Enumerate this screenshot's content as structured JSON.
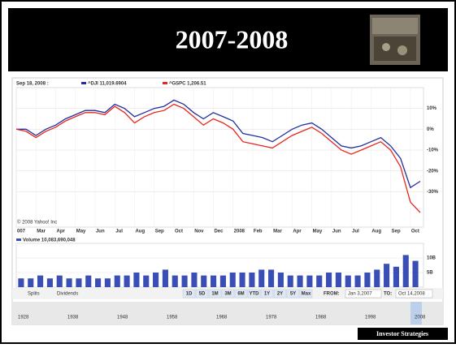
{
  "slide": {
    "title": "2007-2008",
    "footer": "Investor Strategies"
  },
  "chart_data": [
    {
      "type": "line",
      "legend_date": "Sep 18, 2008 :",
      "copyright": "© 2008 Yahoo! Inc",
      "categories": [
        "007",
        null,
        "Mar",
        null,
        "Apr",
        null,
        "May",
        null,
        "Jun",
        null,
        "Jul",
        null,
        "Aug",
        null,
        "Sep",
        null,
        "Oct",
        null,
        "Nov",
        null,
        "Dec",
        null,
        "2008",
        null,
        "Feb",
        null,
        "Mar",
        null,
        "Apr",
        null,
        "May",
        null,
        "Jun",
        null,
        "Jul",
        null,
        "Aug",
        null,
        "Sep",
        null,
        "Oct",
        null
      ],
      "series": [
        {
          "name": "^DJI 11,019.6904",
          "color": "#1f2f9e",
          "values": [
            0,
            0,
            -3,
            0,
            2,
            5,
            7,
            9,
            9,
            8,
            12,
            10,
            6,
            8,
            10,
            11,
            14,
            12,
            8,
            5,
            8,
            6,
            4,
            -2,
            -3,
            -4,
            -6,
            -3,
            0,
            2,
            3,
            0,
            -4,
            -8,
            -9,
            -8,
            -6,
            -4,
            -8,
            -14,
            -28,
            -25
          ]
        },
        {
          "name": "^GSPC 1,206.51",
          "color": "#e8261c",
          "values": [
            0,
            -1,
            -4,
            -1,
            1,
            4,
            6,
            8,
            8,
            7,
            11,
            8,
            3,
            6,
            8,
            9,
            12,
            10,
            6,
            2,
            5,
            3,
            0,
            -6,
            -7,
            -8,
            -9,
            -6,
            -3,
            -1,
            1,
            -2,
            -6,
            -10,
            -12,
            -10,
            -8,
            -6,
            -10,
            -18,
            -35,
            -40
          ]
        }
      ],
      "ylim": [
        -47,
        20
      ],
      "yticks": [
        {
          "value": 10,
          "label": "10%"
        },
        {
          "value": 0,
          "label": "0%"
        },
        {
          "value": -10,
          "label": "-10%"
        },
        {
          "value": -20,
          "label": "-20%"
        },
        {
          "value": -30,
          "label": "-30%"
        }
      ],
      "grid": true
    },
    {
      "type": "bar",
      "series": [
        {
          "name": "Volume 10,083,690,048",
          "color": "#3a4fb5",
          "values": [
            3,
            3,
            4,
            3,
            4,
            3,
            3,
            4,
            3,
            3,
            4,
            4,
            5,
            4,
            5,
            6,
            4,
            4,
            5,
            4,
            4,
            4,
            5,
            5,
            5,
            6,
            6,
            5,
            4,
            4,
            4,
            4,
            5,
            5,
            4,
            4,
            5,
            6,
            8,
            7,
            11,
            9
          ]
        }
      ],
      "ylim": [
        0,
        15
      ],
      "yticks": [
        {
          "value": 10,
          "label": "10B"
        },
        {
          "value": 5,
          "label": "5B"
        }
      ]
    }
  ],
  "controls": {
    "splits": "Splits",
    "dividends": "Dividends",
    "ranges": [
      "1D",
      "5D",
      "1M",
      "3M",
      "6M",
      "YTD",
      "1Y",
      "2Y",
      "5Y",
      "Max"
    ],
    "from_label": "FROM:",
    "from": "Jan 3,2007",
    "to_label": "TO:",
    "to": "Oct 14,2008"
  },
  "navigator": {
    "years": [
      "1928",
      "1938",
      "1948",
      "1958",
      "1968",
      "1978",
      "1988",
      "1998",
      "2008"
    ]
  }
}
